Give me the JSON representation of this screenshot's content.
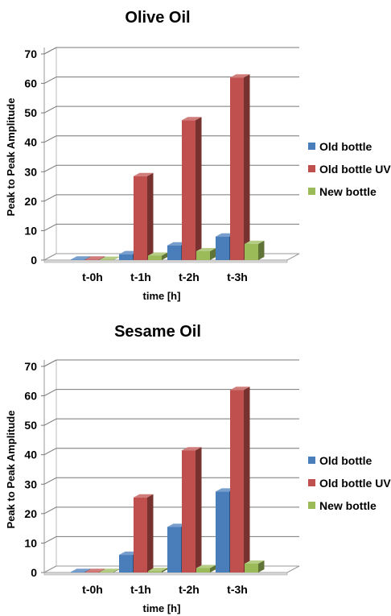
{
  "colors": {
    "old_bottle": "#4a7ebb",
    "old_bottle_uv": "#c0504d",
    "new_bottle": "#9bbb59"
  },
  "chart_data": [
    {
      "type": "bar",
      "title": "Olive Oil",
      "xlabel": "time [h]",
      "ylabel": "Peak to Peak Amplitude",
      "categories": [
        "t-0h",
        "t-1h",
        "t-2h",
        "t-3h"
      ],
      "ylim": [
        0,
        70
      ],
      "yticks": [
        0,
        10,
        20,
        30,
        40,
        50,
        60,
        70
      ],
      "grid": true,
      "legend": "right",
      "series": [
        {
          "name": "Old bottle",
          "values": [
            0.2,
            2,
            5,
            8
          ]
        },
        {
          "name": "Old bottle UV",
          "values": [
            0.2,
            28.5,
            47.5,
            62
          ]
        },
        {
          "name": "New bottle",
          "values": [
            0.1,
            1.5,
            3,
            5.5
          ]
        }
      ]
    },
    {
      "type": "bar",
      "title": "Sesame Oil",
      "xlabel": "time [h]",
      "ylabel": "Peak to Peak Amplitude",
      "categories": [
        "t-0h",
        "t-1h",
        "t-2h",
        "t-3h"
      ],
      "ylim": [
        0,
        70
      ],
      "yticks": [
        0,
        10,
        20,
        30,
        40,
        50,
        60,
        70
      ],
      "grid": true,
      "legend": "right",
      "series": [
        {
          "name": "Old bottle",
          "values": [
            0.2,
            6,
            15.5,
            27.5
          ]
        },
        {
          "name": "Old bottle UV",
          "values": [
            0.2,
            25.5,
            41.5,
            62
          ]
        },
        {
          "name": "New bottle",
          "values": [
            0.2,
            0.5,
            1.5,
            3
          ]
        }
      ]
    }
  ]
}
